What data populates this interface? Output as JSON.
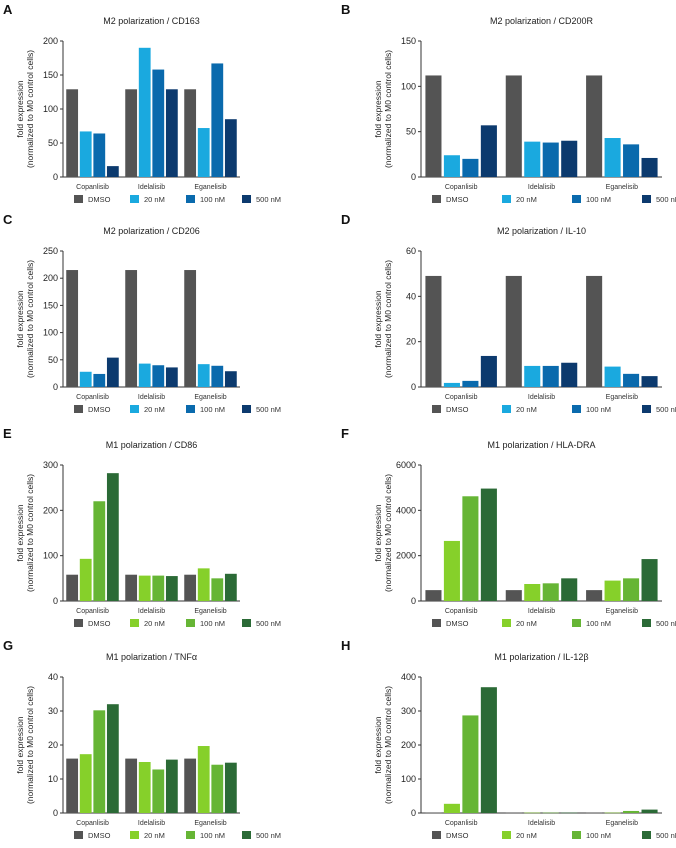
{
  "legend": [
    "DMSO",
    "20 nM",
    "100 nM",
    "500 nM"
  ],
  "categories": [
    "Copanlisib",
    "Idelalisib",
    "Eganelisib"
  ],
  "ylabel_line1": "fold expression",
  "ylabel_line2": "(normalized to M0 control cells)",
  "colors": {
    "dmso": "#545454",
    "m2": [
      "#545454",
      "#1aa9df",
      "#0a6aad",
      "#0c3a6e"
    ],
    "m1": [
      "#545454",
      "#86d02a",
      "#66b535",
      "#2b6a36"
    ]
  },
  "chart_data": [
    {
      "panel": "A",
      "type": "bar",
      "title": "M2 polarization / CD163",
      "palette": "m2",
      "ylim": [
        0,
        200
      ],
      "yticks": [
        0,
        50,
        100,
        150,
        200
      ],
      "series": [
        {
          "name": "DMSO",
          "values": [
            129,
            129,
            129
          ]
        },
        {
          "name": "20 nM",
          "values": [
            67,
            190,
            72
          ]
        },
        {
          "name": "100 nM",
          "values": [
            64,
            158,
            167
          ]
        },
        {
          "name": "500 nM",
          "values": [
            16,
            129,
            85
          ]
        }
      ]
    },
    {
      "panel": "B",
      "type": "bar",
      "title": "M2 polarization / CD200R",
      "palette": "m2",
      "ylim": [
        0,
        150
      ],
      "yticks": [
        0,
        50,
        100,
        150
      ],
      "series": [
        {
          "name": "DMSO",
          "values": [
            112,
            112,
            112
          ]
        },
        {
          "name": "20 nM",
          "values": [
            24,
            39,
            43
          ]
        },
        {
          "name": "100 nM",
          "values": [
            20,
            38,
            36
          ]
        },
        {
          "name": "500 nM",
          "values": [
            57,
            40,
            21
          ]
        }
      ]
    },
    {
      "panel": "C",
      "type": "bar",
      "title": "M2 polarization / CD206",
      "palette": "m2",
      "ylim": [
        0,
        250
      ],
      "yticks": [
        0,
        50,
        100,
        150,
        200,
        250
      ],
      "series": [
        {
          "name": "DMSO",
          "values": [
            215,
            215,
            215
          ]
        },
        {
          "name": "20 nM",
          "values": [
            28,
            43,
            42
          ]
        },
        {
          "name": "100 nM",
          "values": [
            24,
            40,
            39
          ]
        },
        {
          "name": "500 nM",
          "values": [
            54,
            36,
            29
          ]
        }
      ]
    },
    {
      "panel": "D",
      "type": "bar",
      "title": "M2 polarization / IL-10",
      "palette": "m2",
      "ylim": [
        0,
        60
      ],
      "yticks": [
        0,
        20,
        40,
        60
      ],
      "series": [
        {
          "name": "DMSO",
          "values": [
            49,
            49,
            49
          ]
        },
        {
          "name": "20 nM",
          "values": [
            1.8,
            9.3,
            9
          ]
        },
        {
          "name": "100 nM",
          "values": [
            2.7,
            9.3,
            5.8
          ]
        },
        {
          "name": "500 nM",
          "values": [
            13.7,
            10.7,
            4.8
          ]
        }
      ]
    },
    {
      "panel": "E",
      "type": "bar",
      "title": "M1 polarization / CD86",
      "palette": "m1",
      "ylim": [
        0,
        300
      ],
      "yticks": [
        0,
        100,
        200,
        300
      ],
      "series": [
        {
          "name": "DMSO",
          "values": [
            58,
            58,
            58
          ]
        },
        {
          "name": "20 nM",
          "values": [
            93,
            56,
            72
          ]
        },
        {
          "name": "100 nM",
          "values": [
            220,
            56,
            50
          ]
        },
        {
          "name": "500 nM",
          "values": [
            282,
            55,
            60
          ]
        }
      ]
    },
    {
      "panel": "F",
      "type": "bar",
      "title": "M1 polarization / HLA-DRA",
      "palette": "m1",
      "ylim": [
        0,
        6000
      ],
      "yticks": [
        0,
        2000,
        4000,
        6000
      ],
      "series": [
        {
          "name": "DMSO",
          "values": [
            480,
            480,
            480
          ]
        },
        {
          "name": "20 nM",
          "values": [
            2650,
            750,
            900
          ]
        },
        {
          "name": "100 nM",
          "values": [
            4620,
            780,
            1000
          ]
        },
        {
          "name": "500 nM",
          "values": [
            4960,
            1000,
            1850
          ]
        }
      ]
    },
    {
      "panel": "G",
      "type": "bar",
      "title": "M1 polarization / TNFα",
      "palette": "m1",
      "ylim": [
        0,
        40
      ],
      "yticks": [
        0,
        10,
        20,
        30,
        40
      ],
      "series": [
        {
          "name": "DMSO",
          "values": [
            16,
            16,
            16
          ]
        },
        {
          "name": "20 nM",
          "values": [
            17.3,
            15,
            19.7
          ]
        },
        {
          "name": "100 nM",
          "values": [
            30.2,
            12.8,
            14.2
          ]
        },
        {
          "name": "500 nM",
          "values": [
            32,
            15.7,
            14.8
          ]
        }
      ]
    },
    {
      "panel": "H",
      "type": "bar",
      "title": "M1 polarization / IL-12β",
      "palette": "m1",
      "ylim": [
        0,
        400
      ],
      "yticks": [
        0,
        100,
        200,
        300,
        400
      ],
      "series": [
        {
          "name": "DMSO",
          "values": [
            1,
            1,
            1
          ]
        },
        {
          "name": "20 nM",
          "values": [
            27,
            1,
            1
          ]
        },
        {
          "name": "100 nM",
          "values": [
            287,
            1,
            6
          ]
        },
        {
          "name": "500 nM",
          "values": [
            370,
            1,
            10
          ]
        }
      ]
    }
  ]
}
